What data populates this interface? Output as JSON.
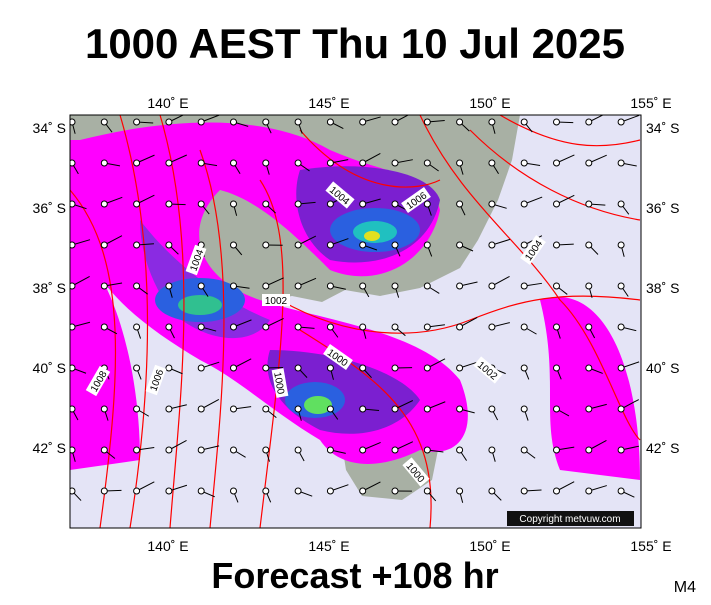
{
  "header": {
    "title": "1000 AEST Thu 10 Jul 2025"
  },
  "map": {
    "lon_ticks": [
      {
        "value": 140,
        "label": "140˚ E"
      },
      {
        "value": 145,
        "label": "145˚ E"
      },
      {
        "value": 150,
        "label": "150˚ E"
      },
      {
        "value": 155,
        "label": "155˚ E"
      }
    ],
    "lat_ticks": [
      {
        "value": -34,
        "label": "34˚ S"
      },
      {
        "value": -36,
        "label": "36˚ S"
      },
      {
        "value": -38,
        "label": "38˚ S"
      },
      {
        "value": -40,
        "label": "40˚ S"
      },
      {
        "value": -42,
        "label": "42˚ S"
      }
    ],
    "isobar_labels": [
      "1006",
      "1004",
      "1004",
      "1002",
      "1004",
      "1000",
      "1000",
      "1002",
      "1008",
      "1006",
      "1000"
    ],
    "copyright": "Copyright metvuw.com"
  },
  "footer": {
    "forecast": "Forecast +108 hr",
    "model": "M4"
  }
}
